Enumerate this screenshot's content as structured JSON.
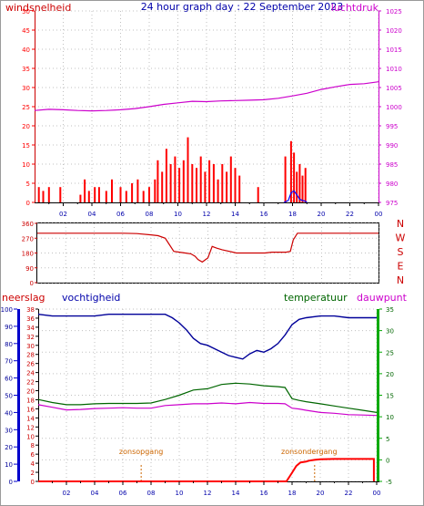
{
  "colors": {
    "background": "#ffffff",
    "axis": "#000000",
    "grid": "#c0c0c0",
    "wind": "#ff0000",
    "gust": "#0000ff",
    "pressure": "#cc00cc",
    "direction": "#cc0000",
    "humidity": "#000099",
    "temperature": "#006600",
    "dewpoint": "#cc00cc",
    "rain": "#ff0000",
    "sun": "#cc6600",
    "bluebar": "#0000cc",
    "greenbar": "#00aa00"
  },
  "chart_data": [
    {
      "id": "wind-pressure",
      "type": "bar",
      "title": "24 hour graph day : 22 September 2023",
      "left_label": "windsnelheid",
      "right_label": "luchtdruk",
      "x_ticks": [
        "02",
        "04",
        "06",
        "08",
        "10",
        "12",
        "14",
        "16",
        "18",
        "20",
        "22",
        "00"
      ],
      "y_left_ticks": [
        "0",
        "5",
        "10",
        "15",
        "20",
        "25",
        "30",
        "35",
        "40",
        "45",
        "50"
      ],
      "y_left_range": [
        0,
        50
      ],
      "y_right_ticks": [
        "975",
        "980",
        "985",
        "990",
        "995",
        "1000",
        "1005",
        "1010",
        "1015",
        "1020",
        "1025"
      ],
      "y_right_range": [
        975,
        1025
      ],
      "x_range": [
        0,
        24
      ],
      "grid": true,
      "pressure": {
        "x": [
          0,
          1,
          2,
          3,
          4,
          5,
          6,
          7,
          8,
          9,
          10,
          11,
          12,
          13,
          14,
          15,
          16,
          17,
          18,
          19,
          20,
          21,
          22,
          23,
          24
        ],
        "values": [
          999.0,
          999.3,
          999.2,
          999.0,
          998.9,
          999.0,
          999.2,
          999.5,
          1000.0,
          1000.6,
          1001.0,
          1001.4,
          1001.3,
          1001.5,
          1001.6,
          1001.7,
          1001.8,
          1002.2,
          1002.8,
          1003.5,
          1004.5,
          1005.2,
          1005.8,
          1006.0,
          1006.5
        ]
      },
      "wind_bars": {
        "x": [
          0.3,
          0.6,
          1.0,
          1.8,
          3.2,
          3.5,
          3.8,
          4.2,
          4.5,
          5.0,
          5.4,
          6.0,
          6.4,
          6.8,
          7.2,
          7.6,
          8.0,
          8.4,
          8.6,
          8.9,
          9.2,
          9.5,
          9.8,
          10.1,
          10.4,
          10.7,
          11.0,
          11.3,
          11.6,
          11.9,
          12.2,
          12.5,
          12.8,
          13.1,
          13.4,
          13.7,
          14.0,
          14.3,
          15.6,
          17.5,
          17.9,
          18.1,
          18.3,
          18.5,
          18.7,
          18.9
        ],
        "values": [
          4,
          3,
          4,
          4,
          2,
          6,
          3,
          4,
          4,
          3,
          6,
          4,
          3,
          5,
          6,
          3,
          4,
          6,
          11,
          8,
          14,
          10,
          12,
          9,
          11,
          17,
          10,
          9,
          12,
          8,
          11,
          10,
          6,
          10,
          8,
          12,
          9,
          7,
          4,
          12,
          16,
          13,
          8,
          10,
          7,
          9
        ]
      },
      "gust_line": {
        "x": [
          17.4,
          17.7,
          17.9,
          18.1,
          18.3,
          18.5,
          18.7,
          18.9,
          19.0
        ],
        "values": [
          0,
          0.5,
          2.5,
          3.0,
          2.0,
          0.8,
          0.5,
          0.3,
          0
        ]
      }
    },
    {
      "id": "wind-direction",
      "type": "line",
      "y_ticks": [
        "0",
        "90",
        "180",
        "270",
        "360"
      ],
      "y_range": [
        0,
        360
      ],
      "x_range": [
        0,
        24
      ],
      "compass_labels": [
        "N",
        "W",
        "S",
        "E",
        "N"
      ],
      "grid": true,
      "series": {
        "x": [
          0,
          1,
          2,
          3,
          4,
          5,
          6,
          7,
          8,
          8.5,
          9,
          9.3,
          9.6,
          10,
          10.4,
          10.8,
          11.1,
          11.3,
          11.6,
          12,
          12.3,
          12.6,
          13,
          14,
          15,
          16,
          16.5,
          17,
          17.5,
          17.8,
          18,
          18.3,
          19,
          20,
          21,
          22,
          23,
          24
        ],
        "values": [
          300,
          300,
          300,
          300,
          300,
          300,
          300,
          298,
          290,
          285,
          270,
          230,
          190,
          185,
          180,
          175,
          160,
          140,
          125,
          150,
          220,
          210,
          200,
          180,
          180,
          180,
          185,
          185,
          185,
          190,
          260,
          300,
          300,
          300,
          300,
          300,
          300,
          300
        ]
      }
    },
    {
      "id": "humidity-temp-rain",
      "type": "line",
      "left_outer_label": "neerslag",
      "left_inner_label": "vochtigheid",
      "temp_label": "temperatuur",
      "dew_label": "dauwpunt",
      "x_ticks": [
        "02",
        "04",
        "06",
        "08",
        "10",
        "12",
        "14",
        "16",
        "18",
        "20",
        "22",
        "00"
      ],
      "x_range": [
        0,
        24
      ],
      "rain_ticks": [
        "0",
        "10",
        "20",
        "30",
        "40",
        "50",
        "60",
        "70",
        "80",
        "90",
        "100"
      ],
      "rain_range": [
        0,
        100
      ],
      "humidity_ticks": [
        "0",
        "2",
        "4",
        "6",
        "8",
        "10",
        "12",
        "14",
        "16",
        "18",
        "20",
        "22",
        "24",
        "26",
        "28",
        "30",
        "32",
        "34",
        "36",
        "38"
      ],
      "humidity_range": [
        0,
        38
      ],
      "temp_ticks": [
        "-5",
        "0",
        "5",
        "10",
        "15",
        "20",
        "25",
        "30",
        "35"
      ],
      "temp_range": [
        -5,
        35
      ],
      "grid": true,
      "humidity": {
        "x": [
          0,
          1,
          2,
          3,
          4,
          5,
          6,
          7,
          8,
          9,
          9.5,
          10,
          10.5,
          11,
          11.5,
          12,
          12.5,
          13,
          13.5,
          14,
          14.5,
          15,
          15.5,
          16,
          16.5,
          17,
          17.5,
          18,
          18.5,
          19,
          20,
          21,
          22,
          23,
          24
        ],
        "values": [
          97,
          96,
          96,
          96,
          96,
          97,
          97,
          97,
          97,
          97,
          95,
          92,
          88,
          83,
          80,
          79,
          77,
          75,
          73,
          72,
          71,
          74,
          76,
          75,
          77,
          80,
          85,
          91,
          94,
          95,
          96,
          96,
          95,
          95,
          95
        ]
      },
      "temperature": {
        "x": [
          0,
          1,
          2,
          3,
          4,
          5,
          6,
          7,
          8,
          9,
          10,
          11,
          12,
          13,
          14,
          15,
          16,
          17,
          17.5,
          18,
          18.5,
          19,
          20,
          21,
          22,
          23,
          24
        ],
        "values": [
          14.0,
          13.3,
          12.8,
          12.8,
          13.0,
          13.1,
          13.1,
          13.1,
          13.2,
          14.0,
          15.0,
          16.2,
          16.5,
          17.5,
          17.8,
          17.6,
          17.2,
          17.0,
          16.8,
          14.2,
          13.8,
          13.5,
          13.0,
          12.5,
          12.0,
          11.5,
          11.0
        ]
      },
      "dewpoint": {
        "x": [
          0,
          1,
          2,
          3,
          4,
          5,
          6,
          7,
          8,
          9,
          10,
          11,
          12,
          13,
          14,
          15,
          16,
          17,
          17.5,
          18,
          18.5,
          19,
          20,
          21,
          22,
          23,
          24
        ],
        "values": [
          12.8,
          12.2,
          11.6,
          11.7,
          11.9,
          12.0,
          12.1,
          12.0,
          12.0,
          12.6,
          12.8,
          13.0,
          13.0,
          13.2,
          13.0,
          13.3,
          13.1,
          13.1,
          13.0,
          12.0,
          11.8,
          11.5,
          11.0,
          10.8,
          10.5,
          10.4,
          10.3
        ]
      },
      "rain_accumulation": {
        "x": [
          0,
          17.6,
          18.0,
          18.3,
          18.6,
          19.0,
          19.2,
          19.6,
          20.0,
          21.0,
          22.0,
          23.0,
          23.8,
          23.8
        ],
        "values": [
          0,
          0,
          5,
          9,
          11,
          11.5,
          12,
          12.5,
          12.8,
          13,
          13,
          13,
          13,
          0
        ]
      },
      "sunrise": {
        "label": "zonsopgang",
        "time": 7.3
      },
      "sunset": {
        "label": "zonsondergang",
        "time": 19.6
      }
    }
  ]
}
